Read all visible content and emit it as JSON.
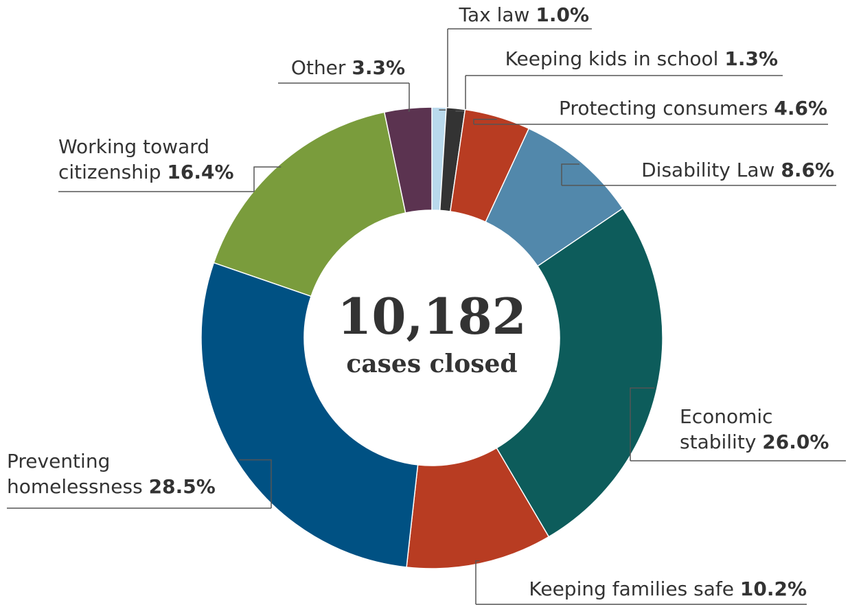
{
  "chart_data": {
    "type": "donut",
    "categories": [
      "Tax law",
      "Keeping kids in school",
      "Protecting consumers",
      "Disability Law",
      "Economic stability",
      "Keeping families safe",
      "Preventing homelessness",
      "Working toward citizenship",
      "Other"
    ],
    "values": [
      1.0,
      1.3,
      4.6,
      8.6,
      26.0,
      10.2,
      28.5,
      16.4,
      3.3
    ],
    "value_labels": [
      "1.0%",
      "1.3%",
      "4.6%",
      "8.6%",
      "26.0%",
      "10.2%",
      "28.5%",
      "16.4%",
      "3.3%"
    ],
    "colors": [
      "#b9d9ec",
      "#333333",
      "#b83c22",
      "#5288ab",
      "#0d5c5b",
      "#b83c22",
      "#005183",
      "#7a9c3c",
      "#5b3350"
    ],
    "annotations": [
      "10,182",
      "cases closed"
    ]
  }
}
